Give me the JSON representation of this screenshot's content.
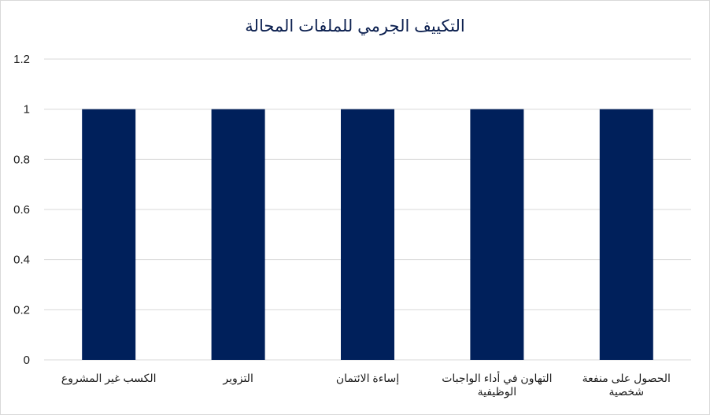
{
  "chart_data": {
    "type": "bar",
    "title": "التكييف الجرمي للملفات المحالة",
    "categories": [
      [
        "الكسب غير المشروع"
      ],
      [
        "التزوير"
      ],
      [
        "إساءة الائتمان"
      ],
      [
        "التهاون في أداء الواجبات",
        "الوظيفية"
      ],
      [
        "الحصول على منفعة",
        "شخصية"
      ]
    ],
    "values": [
      1,
      1,
      1,
      1,
      1
    ],
    "ylim": [
      0,
      1.2
    ],
    "yticks": [
      "0",
      "0.2",
      "0.4",
      "0.6",
      "0.8",
      "1",
      "1.2"
    ],
    "grid": true,
    "legend": "none",
    "bar_color": "#00205b"
  }
}
